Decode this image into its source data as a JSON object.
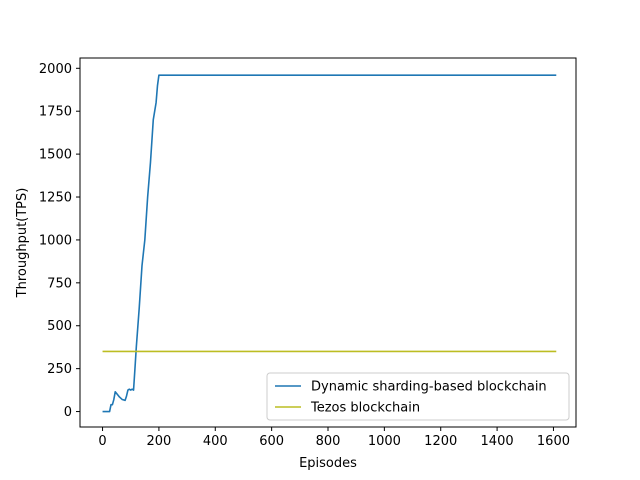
{
  "chart_data": {
    "type": "line",
    "title": "",
    "xlabel": "Episodes",
    "ylabel": "Throughput(TPS)",
    "xlim": [
      -80,
      1680
    ],
    "ylim": [
      -90,
      2060
    ],
    "xticks": [
      0,
      200,
      400,
      600,
      800,
      1000,
      1200,
      1400,
      1600
    ],
    "yticks": [
      0,
      250,
      500,
      750,
      1000,
      1250,
      1500,
      1750,
      2000
    ],
    "grid": false,
    "legend_position": "lower-right",
    "series": [
      {
        "name": "Dynamic sharding-based blockchain",
        "color": "#1f77b4",
        "x": [
          0,
          10,
          20,
          25,
          30,
          35,
          40,
          45,
          50,
          60,
          70,
          80,
          85,
          90,
          95,
          100,
          105,
          110,
          115,
          120,
          130,
          140,
          150,
          160,
          170,
          180,
          190,
          195,
          200,
          205,
          210,
          300,
          400,
          600,
          800,
          1000,
          1200,
          1400,
          1600,
          1610
        ],
        "y": [
          0,
          0,
          0,
          0,
          40,
          40,
          70,
          115,
          105,
          85,
          70,
          65,
          90,
          125,
          130,
          125,
          130,
          125,
          250,
          380,
          600,
          850,
          1000,
          1250,
          1450,
          1700,
          1800,
          1900,
          1960,
          1960,
          1960,
          1960,
          1960,
          1960,
          1960,
          1960,
          1960,
          1960,
          1960,
          1960
        ]
      },
      {
        "name": "Tezos blockchain",
        "color": "#bcbd22",
        "x": [
          0,
          1610
        ],
        "y": [
          350,
          350
        ]
      }
    ]
  }
}
